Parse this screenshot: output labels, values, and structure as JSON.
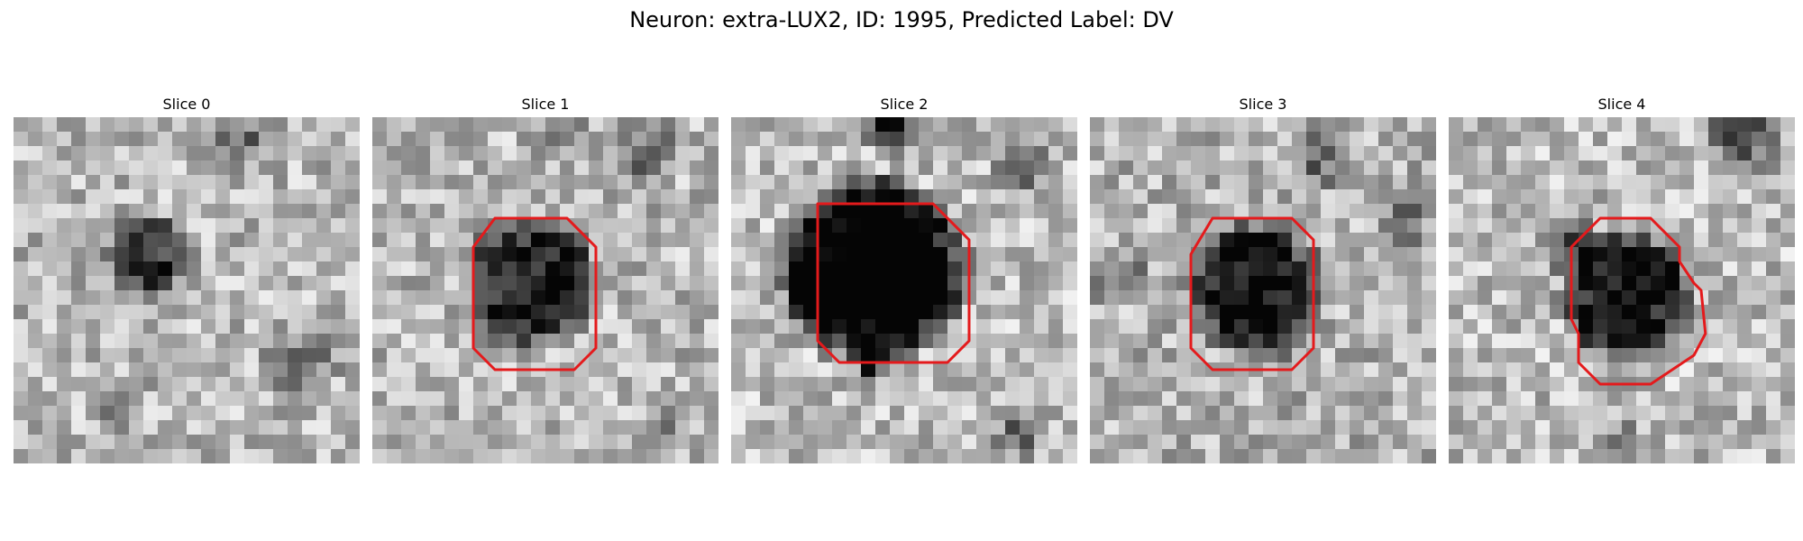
{
  "figure": {
    "title": "Neuron: extra-LUX2, ID: 1995, Predicted Label: DV"
  },
  "outline_color": "#e41a1c",
  "panels": [
    {
      "title": "Slice 0",
      "has_outline": false
    },
    {
      "title": "Slice 1",
      "has_outline": true
    },
    {
      "title": "Slice 2",
      "has_outline": true
    },
    {
      "title": "Slice 3",
      "has_outline": true
    },
    {
      "title": "Slice 4",
      "has_outline": true
    }
  ]
}
